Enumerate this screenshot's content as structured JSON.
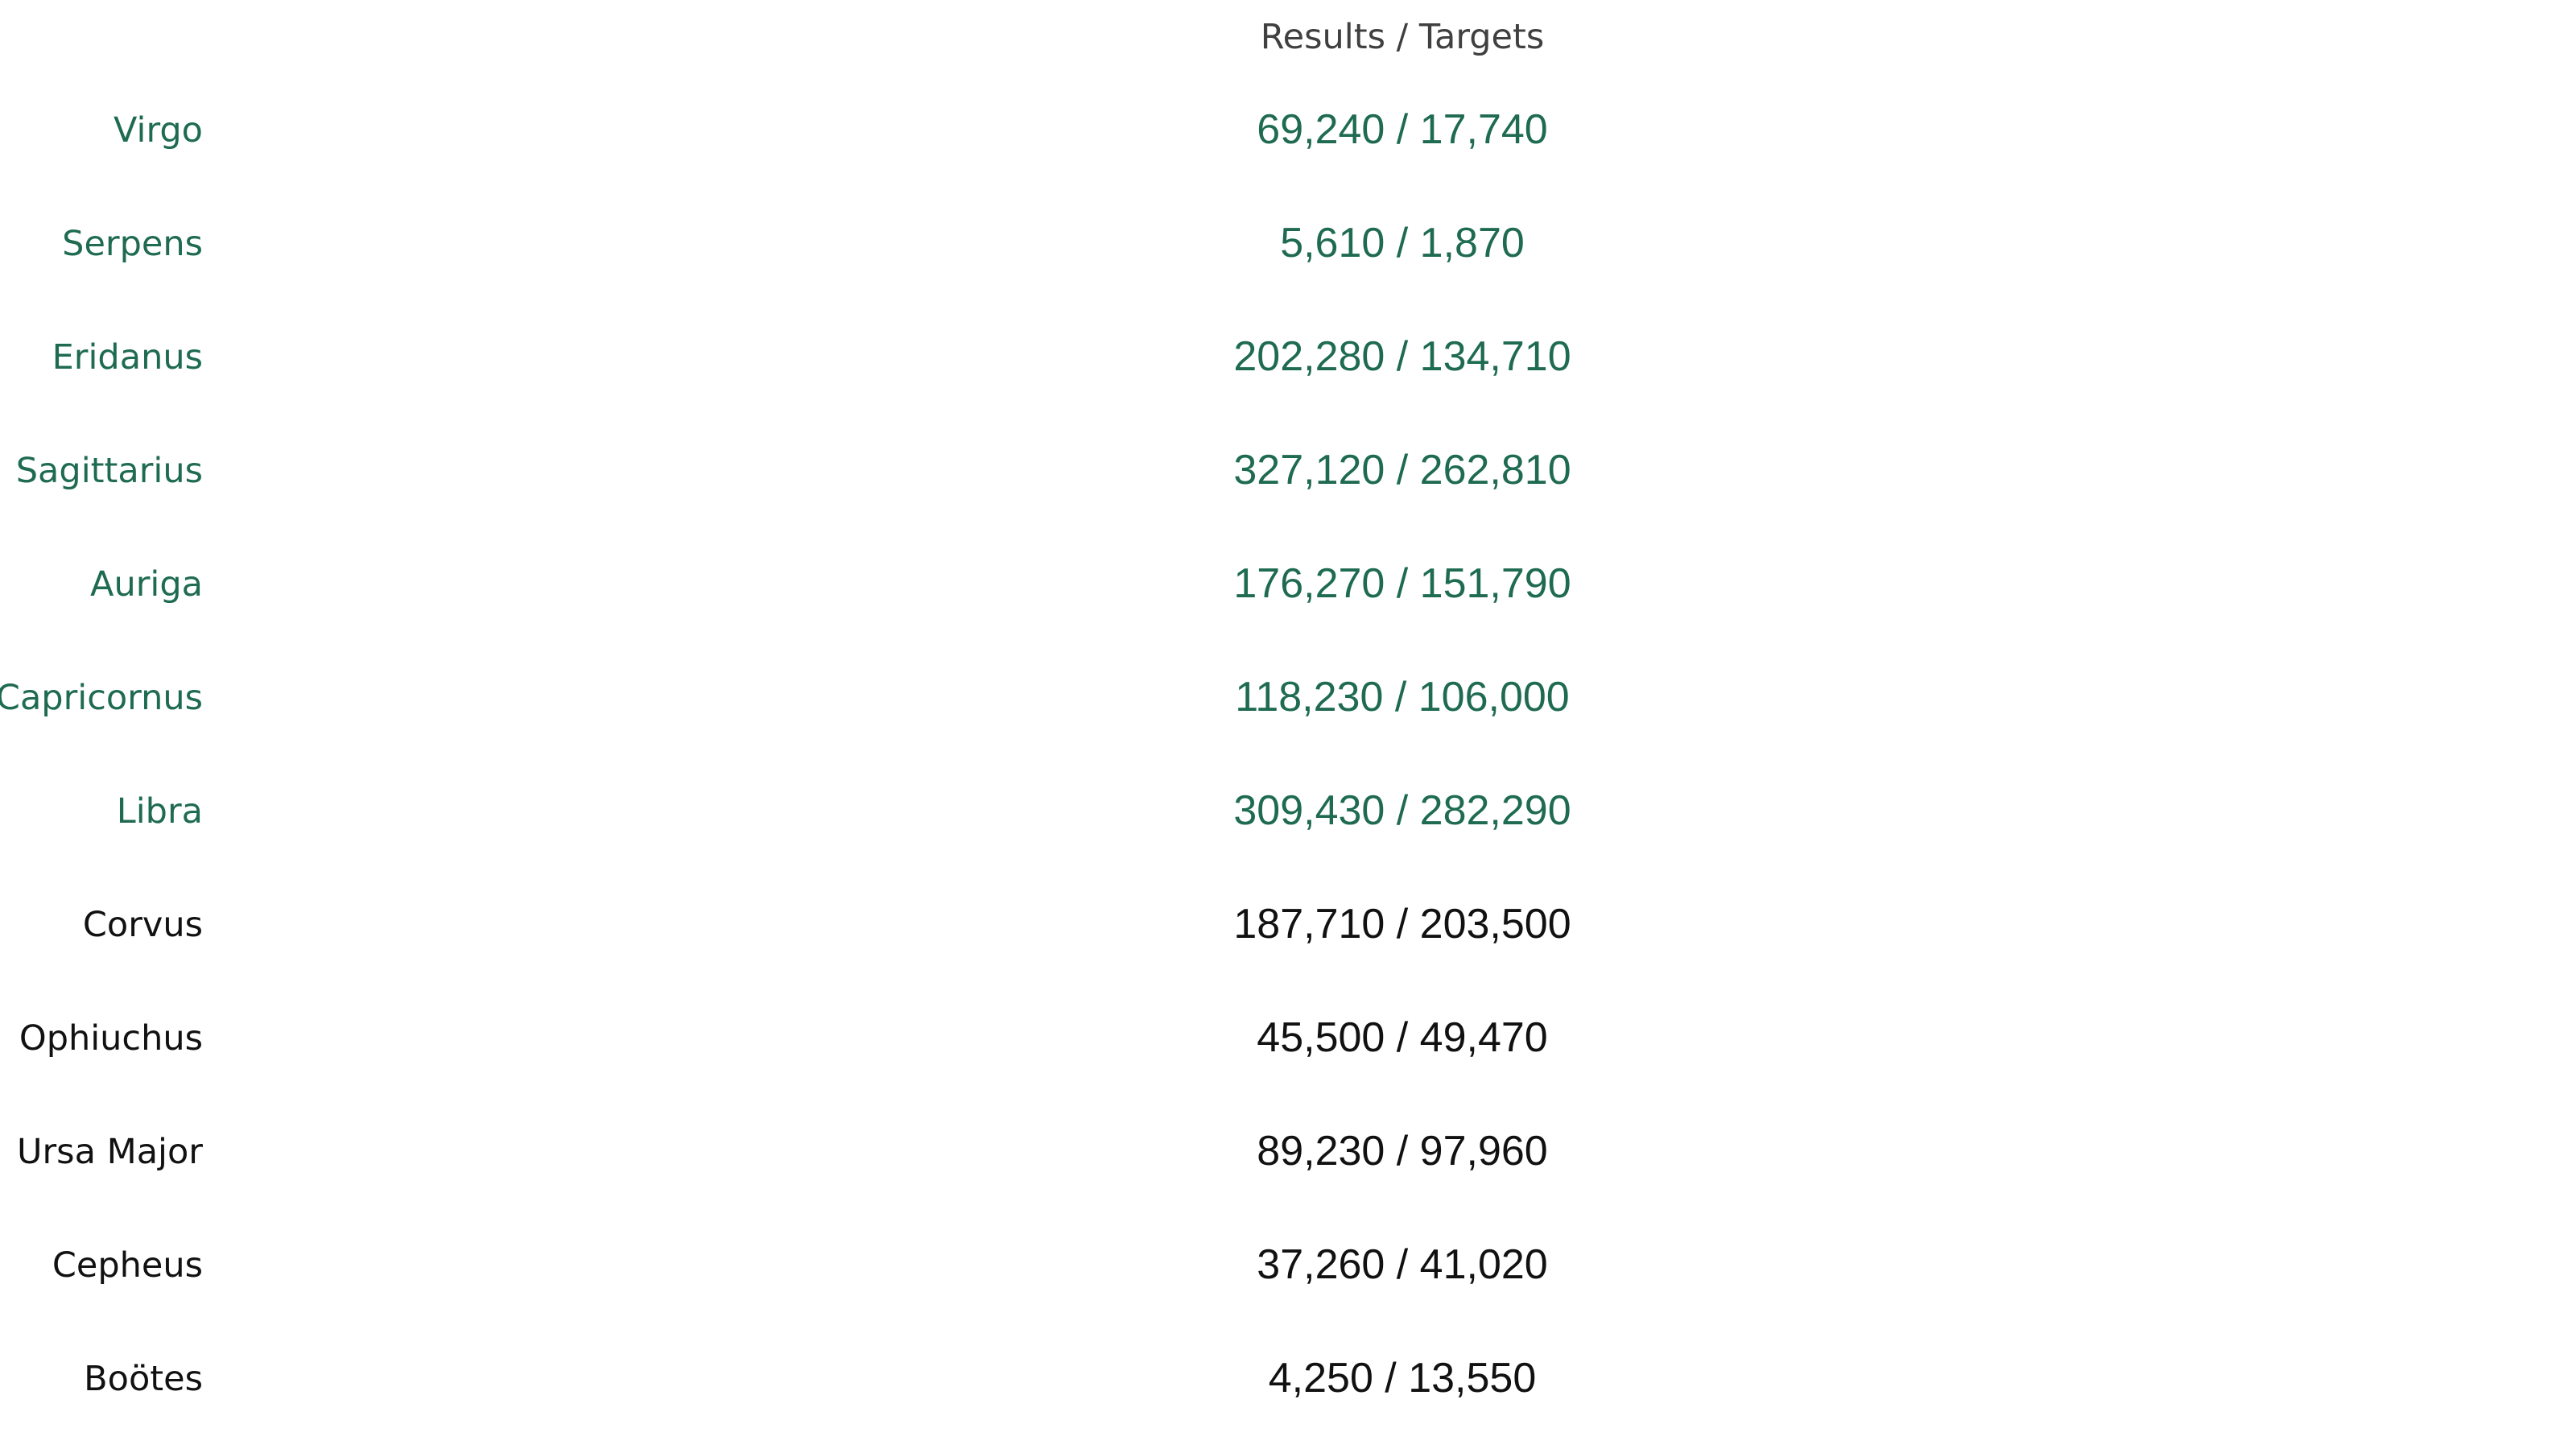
{
  "chart_data": {
    "type": "table",
    "title": "",
    "column_header": "Results / Targets",
    "colors": {
      "met": "#1f6b52",
      "not_met": "#111111",
      "header": "#404040"
    },
    "rows": [
      {
        "label": "Virgo",
        "result": 69240,
        "target": 17740,
        "text": "69,240 / 17,740",
        "status": "met"
      },
      {
        "label": "Serpens",
        "result": 5610,
        "target": 1870,
        "text": "5,610 / 1,870",
        "status": "met"
      },
      {
        "label": "Eridanus",
        "result": 202280,
        "target": 134710,
        "text": "202,280 / 134,710",
        "status": "met"
      },
      {
        "label": "Sagittarius",
        "result": 327120,
        "target": 262810,
        "text": "327,120 / 262,810",
        "status": "met"
      },
      {
        "label": "Auriga",
        "result": 176270,
        "target": 151790,
        "text": "176,270 / 151,790",
        "status": "met"
      },
      {
        "label": "Capricornus",
        "result": 118230,
        "target": 106000,
        "text": "118,230 / 106,000",
        "status": "met"
      },
      {
        "label": "Libra",
        "result": 309430,
        "target": 282290,
        "text": "309,430 / 282,290",
        "status": "met"
      },
      {
        "label": "Corvus",
        "result": 187710,
        "target": 203500,
        "text": "187,710 / 203,500",
        "status": "not_met"
      },
      {
        "label": "Ophiuchus",
        "result": 45500,
        "target": 49470,
        "text": "45,500 / 49,470",
        "status": "not_met"
      },
      {
        "label": "Ursa Major",
        "result": 89230,
        "target": 97960,
        "text": "89,230 / 97,960",
        "status": "not_met"
      },
      {
        "label": "Cepheus",
        "result": 37260,
        "target": 41020,
        "text": "37,260 / 41,020",
        "status": "not_met"
      },
      {
        "label": "Boötes",
        "result": 4250,
        "target": 13550,
        "text": "4,250 / 13,550",
        "status": "not_met"
      }
    ]
  }
}
